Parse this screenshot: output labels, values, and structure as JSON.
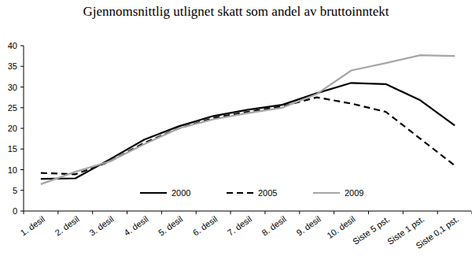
{
  "chart_data": {
    "type": "line",
    "title": "Gjennomsnittlig utlignet skatt som andel av bruttoinntekt",
    "categories": [
      "1. desil",
      "2. desil",
      "3. desil",
      "4. desil",
      "5. desil",
      "6. desil",
      "7. desil",
      "8. desil",
      "9. desil",
      "10. desil",
      "Siste 5 pst.",
      "Siste 1 pst.",
      "Siste 0,1 pst."
    ],
    "series": [
      {
        "name": "2000",
        "color": "#000000",
        "line_style": "solid",
        "values": [
          7.8,
          7.9,
          12.5,
          17.3,
          20.5,
          23,
          24.5,
          25.7,
          28.5,
          31,
          30.7,
          26.8,
          20.7
        ]
      },
      {
        "name": "2005",
        "color": "#000000",
        "line_style": "dashed",
        "values": [
          9.2,
          8.9,
          12,
          16.5,
          20,
          22.5,
          24,
          25.3,
          27.5,
          26,
          24,
          17.5,
          11
        ]
      },
      {
        "name": "2009",
        "color": "#a6a6a6",
        "line_style": "solid",
        "values": [
          6.5,
          9.5,
          12,
          16.2,
          20,
          22.2,
          23.7,
          25,
          28.3,
          34,
          35.8,
          37.7,
          37.5
        ]
      }
    ],
    "ylim": [
      0,
      40
    ],
    "yticks": [
      0,
      5,
      10,
      15,
      20,
      25,
      30,
      35,
      40
    ],
    "grid": false,
    "legend": "bottom"
  }
}
